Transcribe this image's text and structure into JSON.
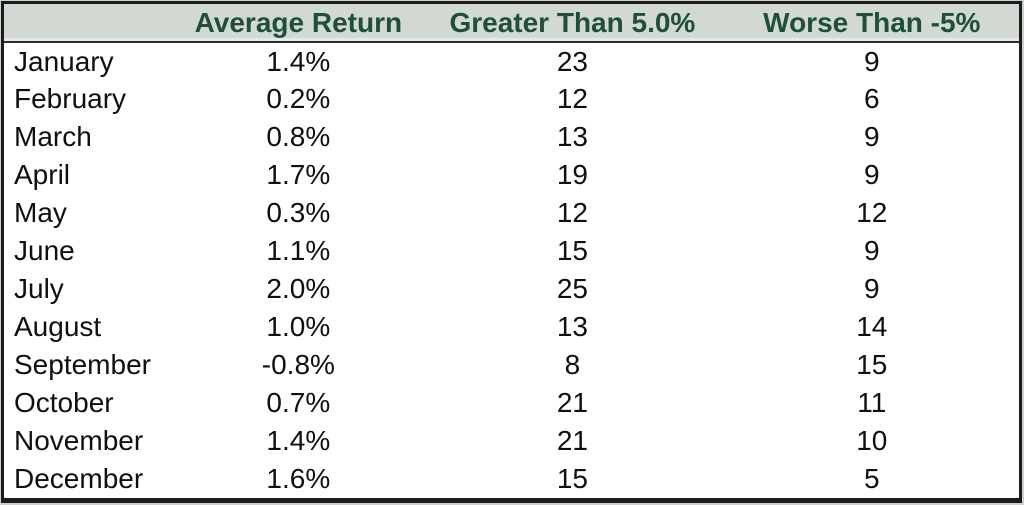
{
  "chart_data": {
    "type": "table",
    "title": "",
    "columns": [
      "",
      "Average Return",
      "Greater Than 5.0%",
      "Worse Than -5%"
    ],
    "rows": [
      {
        "month": "January",
        "avg_return": "1.4%",
        "greater_than_5": "23",
        "worse_than_neg5": "9"
      },
      {
        "month": "February",
        "avg_return": "0.2%",
        "greater_than_5": "12",
        "worse_than_neg5": "6"
      },
      {
        "month": "March",
        "avg_return": "0.8%",
        "greater_than_5": "13",
        "worse_than_neg5": "9"
      },
      {
        "month": "April",
        "avg_return": "1.7%",
        "greater_than_5": "19",
        "worse_than_neg5": "9"
      },
      {
        "month": "May",
        "avg_return": "0.3%",
        "greater_than_5": "12",
        "worse_than_neg5": "12"
      },
      {
        "month": "June",
        "avg_return": "1.1%",
        "greater_than_5": "15",
        "worse_than_neg5": "9"
      },
      {
        "month": "July",
        "avg_return": "2.0%",
        "greater_than_5": "25",
        "worse_than_neg5": "9"
      },
      {
        "month": "August",
        "avg_return": "1.0%",
        "greater_than_5": "13",
        "worse_than_neg5": "14"
      },
      {
        "month": "September",
        "avg_return": "-0.8%",
        "greater_than_5": "8",
        "worse_than_neg5": "15"
      },
      {
        "month": "October",
        "avg_return": "0.7%",
        "greater_than_5": "21",
        "worse_than_neg5": "11"
      },
      {
        "month": "November",
        "avg_return": "1.4%",
        "greater_than_5": "21",
        "worse_than_neg5": "10"
      },
      {
        "month": "December",
        "avg_return": "1.6%",
        "greater_than_5": "15",
        "worse_than_neg5": "5"
      }
    ]
  },
  "colors": {
    "header_bg": "#d2d9d2",
    "header_text": "#1f4e3d",
    "border": "#1c1c1c",
    "body_text": "#0f0f0f",
    "page_bg": "#cfcfcf"
  }
}
